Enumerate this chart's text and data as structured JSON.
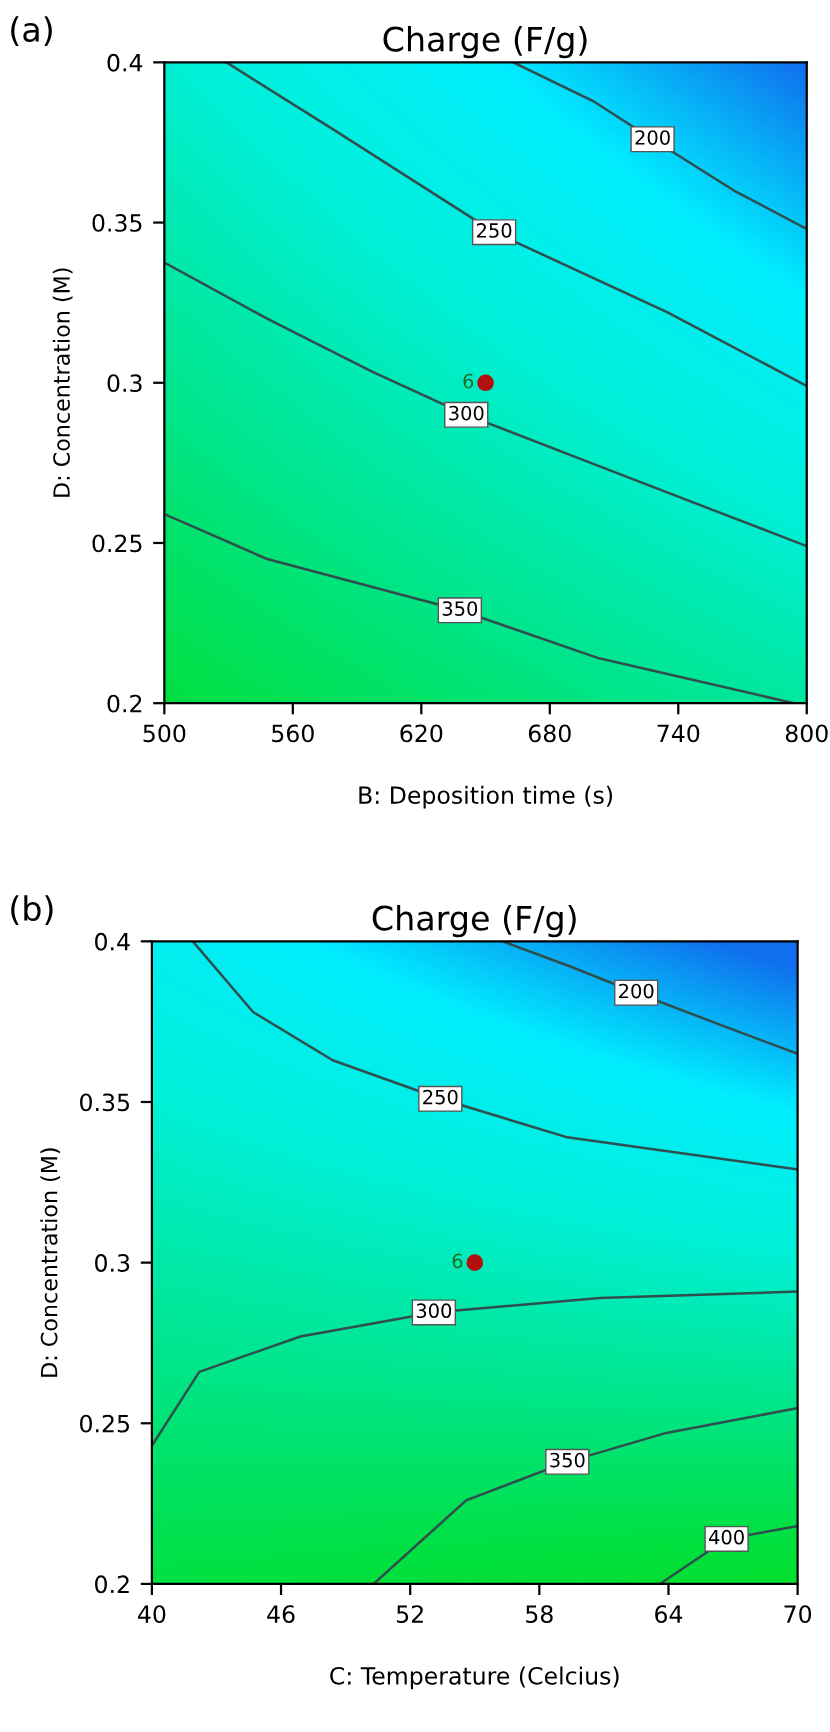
{
  "chart_data": [
    {
      "type": "line",
      "title": "Charge (F/g)",
      "xlabel": "B: Deposition time (s)",
      "ylabel": "D: Concentration (M)",
      "annotations": [
        "(a)",
        {
          "text": "6",
          "x": 650,
          "y": 0.3
        }
      ],
      "xlim": [
        500,
        800
      ],
      "xticks": [
        500,
        560,
        620,
        680,
        740,
        800
      ],
      "ylim": [
        0.2,
        0.4
      ],
      "yticks": [
        0.2,
        0.25,
        0.3,
        0.35,
        0.4
      ],
      "series": [
        {
          "name": "200",
          "color": "#2f4f4f",
          "x": [
            663,
            700,
            728,
            766,
            800
          ],
          "values": [
            0.4,
            0.388,
            0.376,
            0.36,
            0.348
          ]
        },
        {
          "name": "250",
          "color": "#2f4f4f",
          "x": [
            529,
            579,
            654,
            735,
            800
          ],
          "values": [
            0.4,
            0.379,
            0.347,
            0.322,
            0.299
          ]
        },
        {
          "name": "300",
          "color": "#2f4f4f",
          "x": [
            500,
            548,
            597,
            641,
            703,
            800
          ],
          "values": [
            0.3375,
            0.32,
            0.3035,
            0.29,
            0.274,
            0.249
          ]
        },
        {
          "name": "350",
          "color": "#2f4f4f",
          "x": [
            500,
            548,
            638,
            703,
            794
          ],
          "values": [
            0.259,
            0.245,
            0.229,
            0.214,
            0.2
          ]
        },
        {
          "type": "scatter",
          "marker": "circle",
          "color": "#b01010",
          "x": [
            650
          ],
          "values": [
            0.3
          ]
        }
      ]
    },
    {
      "type": "line",
      "title": "Charge (F/g)",
      "xlabel": "C: Temperature (Celcius)",
      "ylabel": "D: Concentration (M)",
      "annotations": [
        "(b)",
        {
          "text": "6",
          "x": 55,
          "y": 0.3
        }
      ],
      "xlim": [
        40,
        70
      ],
      "xticks": [
        40,
        46,
        52,
        58,
        64,
        70
      ],
      "ylim": [
        0.2,
        0.4
      ],
      "yticks": [
        0.2,
        0.25,
        0.3,
        0.35,
        0.4
      ],
      "series": [
        {
          "name": "200",
          "color": "#2f4f4f",
          "x": [
            56.3,
            59.5,
            62.5,
            67,
            70
          ],
          "values": [
            0.4,
            0.392,
            0.384,
            0.3725,
            0.365
          ]
        },
        {
          "name": "250",
          "color": "#2f4f4f",
          "x": [
            41.9,
            44.7,
            48.4,
            53.4,
            59.3,
            70
          ],
          "values": [
            0.4,
            0.378,
            0.363,
            0.351,
            0.339,
            0.329
          ]
        },
        {
          "name": "300",
          "color": "#2f4f4f",
          "x": [
            40,
            42.2,
            46.9,
            53.1,
            60.8,
            70
          ],
          "values": [
            0.243,
            0.266,
            0.277,
            0.2845,
            0.289,
            0.291
          ]
        },
        {
          "name": "350",
          "color": "#2f4f4f",
          "x": [
            50.3,
            54.6,
            59.3,
            63.9,
            70
          ],
          "values": [
            0.2,
            0.226,
            0.238,
            0.247,
            0.2547
          ]
        },
        {
          "name": "400",
          "color": "#2f4f4f",
          "x": [
            63.6,
            66.7,
            70
          ],
          "values": [
            0.2,
            0.214,
            0.218
          ]
        },
        {
          "type": "scatter",
          "marker": "circle",
          "color": "#b01010",
          "x": [
            55
          ],
          "values": [
            0.3
          ]
        }
      ]
    }
  ]
}
